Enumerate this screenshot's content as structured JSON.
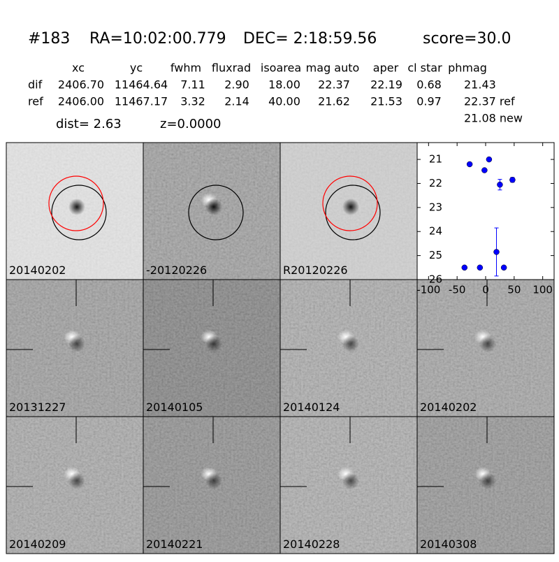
{
  "header": {
    "id": "#183",
    "ra": "RA=10:02:00.779",
    "dec": "DEC= 2:18:59.56",
    "score": "score=30.0"
  },
  "table": {
    "columns": [
      "xc",
      "yc",
      "fwhm",
      "fluxrad",
      "isoarea",
      "mag auto",
      "aper",
      "cl star",
      "phmag"
    ],
    "rows": [
      [
        "dif",
        "2406.70",
        "11464.64",
        "7.11",
        "2.90",
        "18.00",
        "22.37",
        "22.19",
        "0.68",
        "21.43"
      ],
      [
        "ref",
        "2406.00",
        "11467.17",
        "3.32",
        "2.14",
        "40.00",
        "21.62",
        "21.53",
        "0.97",
        "22.37 ref"
      ]
    ],
    "extra": "21.08 new"
  },
  "dist": "dist=  2.63",
  "z": "z=0.0000",
  "panels": [
    {
      "label": "20140202"
    },
    {
      "label": "-20120226"
    },
    {
      "label": "R20120226"
    },
    {
      "label": "20131227"
    },
    {
      "label": "20140105"
    },
    {
      "label": "20140124"
    },
    {
      "label": "20140202",
      "label_color": "#ff0000"
    },
    {
      "label": "20140209"
    },
    {
      "label": "20140221"
    },
    {
      "label": "20140228"
    },
    {
      "label": "20140308"
    }
  ],
  "chart_data": {
    "type": "scatter",
    "color": "#0000ff",
    "x": [
      -28,
      -2,
      6,
      25,
      47,
      -37,
      -10,
      19,
      32
    ],
    "values": [
      21.2,
      21.45,
      21.0,
      22.05,
      21.85,
      25.5,
      25.5,
      24.85,
      25.5
    ],
    "errors": [
      null,
      null,
      null,
      0.22,
      0.1,
      null,
      null,
      1.0,
      null
    ],
    "xlim": [
      -120,
      120
    ],
    "ylim": [
      26,
      20.3
    ],
    "xticks": [
      -100,
      -50,
      0,
      50,
      100
    ],
    "yticks": [
      21,
      22,
      23,
      24,
      25,
      26
    ]
  }
}
